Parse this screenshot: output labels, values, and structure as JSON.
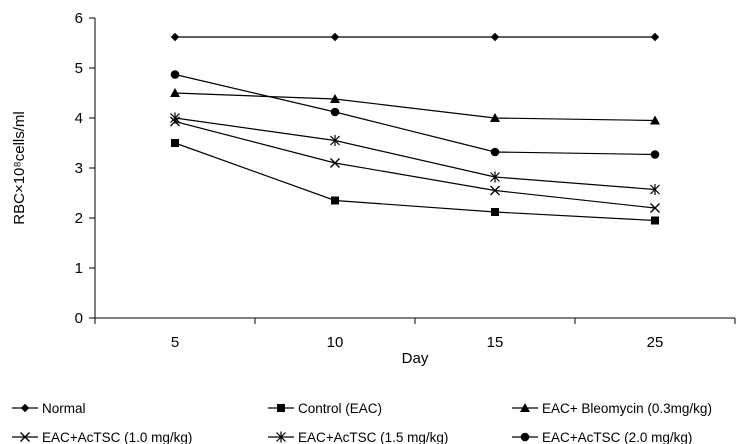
{
  "chart_data": {
    "type": "line",
    "title": "",
    "xlabel": "Day",
    "ylabel": "RBC×10⁸cells/ml",
    "categories": [
      "5",
      "10",
      "15",
      "25"
    ],
    "ylim": [
      0,
      6
    ],
    "yticks": [
      "0",
      "1",
      "2",
      "3",
      "4",
      "5",
      "6"
    ],
    "grid": false,
    "legend_position": "bottom",
    "series": [
      {
        "name": "Normal",
        "marker": "diamond",
        "values": [
          5.62,
          5.62,
          5.62,
          5.62
        ]
      },
      {
        "name": "Control (EAC)",
        "marker": "square",
        "values": [
          3.5,
          2.35,
          2.12,
          1.95
        ]
      },
      {
        "name": "EAC+ Bleomycin (0.3mg/kg)",
        "marker": "triangle",
        "values": [
          4.5,
          4.38,
          4.0,
          3.95
        ]
      },
      {
        "name": "EAC+AcTSC (1.0 mg/kg)",
        "marker": "x",
        "values": [
          3.93,
          3.1,
          2.55,
          2.2
        ]
      },
      {
        "name": "EAC+AcTSC (1.5 mg/kg)",
        "marker": "star",
        "values": [
          4.0,
          3.55,
          2.82,
          2.57
        ]
      },
      {
        "name": "EAC+AcTSC (2.0 mg/kg)",
        "marker": "circle",
        "values": [
          4.87,
          4.12,
          3.32,
          3.27
        ]
      }
    ]
  }
}
